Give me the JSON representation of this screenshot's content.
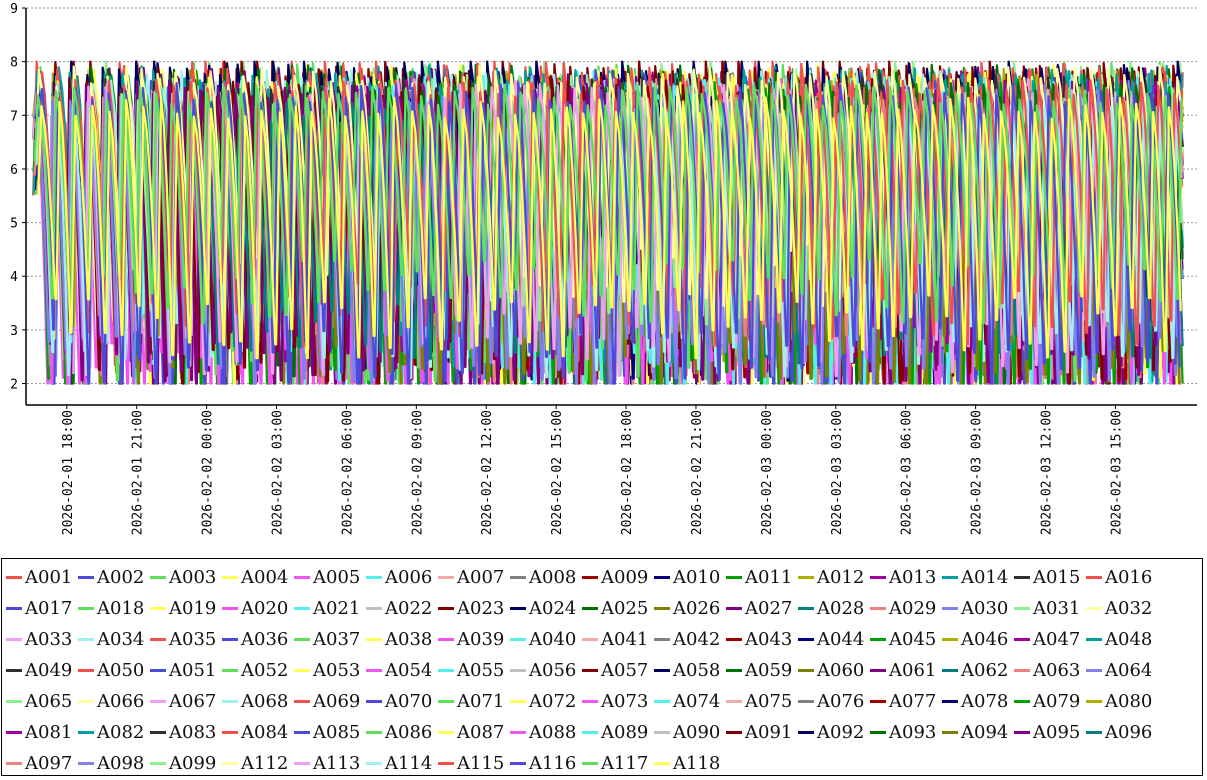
{
  "chart_data": {
    "type": "line",
    "title": "",
    "xlabel": "",
    "ylabel": "",
    "ylim": [
      1.6,
      9
    ],
    "yticks": [
      2,
      3,
      4,
      5,
      6,
      7,
      8,
      9
    ],
    "grid": "horizontal dashed",
    "legend_placement": "bottom",
    "x_tick_labels": [
      "2026-02-01  18:00",
      "2026-02-01  21:00",
      "2026-02-02  00:00",
      "2026-02-02  03:00",
      "2026-02-02  06:00",
      "2026-02-02  09:00",
      "2026-02-02  12:00",
      "2026-02-02  15:00",
      "2026-02-02  18:00",
      "2026-02-02  21:00",
      "2026-02-03  00:00",
      "2026-02-03  03:00",
      "2026-02-03  06:00",
      "2026-02-03  09:00",
      "2026-02-03  12:00",
      "2026-02-03  15:00"
    ],
    "x_range_hours": [
      16.25,
      66.5
    ],
    "x_tick_hours": [
      18,
      21,
      24,
      27,
      30,
      33,
      36,
      39,
      42,
      45,
      48,
      51,
      54,
      57,
      60,
      63
    ],
    "series_pattern": {
      "cycle_hours": 0.85,
      "low_range": [
        2.0,
        4.3
      ],
      "high_range": [
        6.9,
        7.9
      ]
    },
    "series": [
      {
        "name": "A001",
        "color": "#f05050"
      },
      {
        "name": "A002",
        "color": "#4b4bd8"
      },
      {
        "name": "A003",
        "color": "#5de05d"
      },
      {
        "name": "A004",
        "color": "#ffff55"
      },
      {
        "name": "A005",
        "color": "#ef55ef"
      },
      {
        "name": "A006",
        "color": "#55efef"
      },
      {
        "name": "A007",
        "color": "#f5aaaa"
      },
      {
        "name": "A008",
        "color": "#808080"
      },
      {
        "name": "A009",
        "color": "#a00000"
      },
      {
        "name": "A010",
        "color": "#000080"
      },
      {
        "name": "A011",
        "color": "#00a000"
      },
      {
        "name": "A012",
        "color": "#b0b000"
      },
      {
        "name": "A013",
        "color": "#a000a0"
      },
      {
        "name": "A014",
        "color": "#00a0a0"
      },
      {
        "name": "A015",
        "color": "#303030"
      },
      {
        "name": "A016",
        "color": "#f05050"
      },
      {
        "name": "A017",
        "color": "#4b4bd8"
      },
      {
        "name": "A018",
        "color": "#5de05d"
      },
      {
        "name": "A019",
        "color": "#ffff55"
      },
      {
        "name": "A020",
        "color": "#ef55ef"
      },
      {
        "name": "A021",
        "color": "#55efef"
      },
      {
        "name": "A022",
        "color": "#c0c0c0"
      },
      {
        "name": "A023",
        "color": "#800000"
      },
      {
        "name": "A024",
        "color": "#000060"
      },
      {
        "name": "A025",
        "color": "#007000"
      },
      {
        "name": "A026",
        "color": "#808000"
      },
      {
        "name": "A027",
        "color": "#800080"
      },
      {
        "name": "A028",
        "color": "#008080"
      },
      {
        "name": "A029",
        "color": "#f08080"
      },
      {
        "name": "A030",
        "color": "#8080f0"
      },
      {
        "name": "A031",
        "color": "#90f090"
      },
      {
        "name": "A032",
        "color": "#ffffa0"
      },
      {
        "name": "A033",
        "color": "#f0a0f0"
      },
      {
        "name": "A034",
        "color": "#a0f0f0"
      },
      {
        "name": "A035",
        "color": "#f05050"
      },
      {
        "name": "A036",
        "color": "#4b4bd8"
      },
      {
        "name": "A037",
        "color": "#5de05d"
      },
      {
        "name": "A038",
        "color": "#ffff55"
      },
      {
        "name": "A039",
        "color": "#ef55ef"
      },
      {
        "name": "A040",
        "color": "#55efef"
      },
      {
        "name": "A041",
        "color": "#f5aaaa"
      },
      {
        "name": "A042",
        "color": "#808080"
      },
      {
        "name": "A043",
        "color": "#a00000"
      },
      {
        "name": "A044",
        "color": "#000080"
      },
      {
        "name": "A045",
        "color": "#00a000"
      },
      {
        "name": "A046",
        "color": "#b0b000"
      },
      {
        "name": "A047",
        "color": "#a000a0"
      },
      {
        "name": "A048",
        "color": "#00a0a0"
      },
      {
        "name": "A049",
        "color": "#303030"
      },
      {
        "name": "A050",
        "color": "#f05050"
      },
      {
        "name": "A051",
        "color": "#4b4bd8"
      },
      {
        "name": "A052",
        "color": "#5de05d"
      },
      {
        "name": "A053",
        "color": "#ffff55"
      },
      {
        "name": "A054",
        "color": "#ef55ef"
      },
      {
        "name": "A055",
        "color": "#55efef"
      },
      {
        "name": "A056",
        "color": "#c0c0c0"
      },
      {
        "name": "A057",
        "color": "#800000"
      },
      {
        "name": "A058",
        "color": "#000060"
      },
      {
        "name": "A059",
        "color": "#007000"
      },
      {
        "name": "A060",
        "color": "#808000"
      },
      {
        "name": "A061",
        "color": "#800080"
      },
      {
        "name": "A062",
        "color": "#008080"
      },
      {
        "name": "A063",
        "color": "#f08080"
      },
      {
        "name": "A064",
        "color": "#8080f0"
      },
      {
        "name": "A065",
        "color": "#90f090"
      },
      {
        "name": "A066",
        "color": "#ffffa0"
      },
      {
        "name": "A067",
        "color": "#f0a0f0"
      },
      {
        "name": "A068",
        "color": "#a0f0f0"
      },
      {
        "name": "A069",
        "color": "#f05050"
      },
      {
        "name": "A070",
        "color": "#4b4bd8"
      },
      {
        "name": "A071",
        "color": "#5de05d"
      },
      {
        "name": "A072",
        "color": "#ffff55"
      },
      {
        "name": "A073",
        "color": "#ef55ef"
      },
      {
        "name": "A074",
        "color": "#55efef"
      },
      {
        "name": "A075",
        "color": "#f5aaaa"
      },
      {
        "name": "A076",
        "color": "#808080"
      },
      {
        "name": "A077",
        "color": "#a00000"
      },
      {
        "name": "A078",
        "color": "#000080"
      },
      {
        "name": "A079",
        "color": "#00a000"
      },
      {
        "name": "A080",
        "color": "#b0b000"
      },
      {
        "name": "A081",
        "color": "#a000a0"
      },
      {
        "name": "A082",
        "color": "#00a0a0"
      },
      {
        "name": "A083",
        "color": "#303030"
      },
      {
        "name": "A084",
        "color": "#f05050"
      },
      {
        "name": "A085",
        "color": "#4b4bd8"
      },
      {
        "name": "A086",
        "color": "#5de05d"
      },
      {
        "name": "A087",
        "color": "#ffff55"
      },
      {
        "name": "A088",
        "color": "#ef55ef"
      },
      {
        "name": "A089",
        "color": "#55efef"
      },
      {
        "name": "A090",
        "color": "#c0c0c0"
      },
      {
        "name": "A091",
        "color": "#800000"
      },
      {
        "name": "A092",
        "color": "#000060"
      },
      {
        "name": "A093",
        "color": "#007000"
      },
      {
        "name": "A094",
        "color": "#808000"
      },
      {
        "name": "A095",
        "color": "#800080"
      },
      {
        "name": "A096",
        "color": "#008080"
      },
      {
        "name": "A097",
        "color": "#f08080"
      },
      {
        "name": "A098",
        "color": "#8080f0"
      },
      {
        "name": "A099",
        "color": "#90f090"
      },
      {
        "name": "A112",
        "color": "#ffffa0"
      },
      {
        "name": "A113",
        "color": "#f0a0f0"
      },
      {
        "name": "A114",
        "color": "#a0f0f0"
      },
      {
        "name": "A115",
        "color": "#f05050"
      },
      {
        "name": "A116",
        "color": "#4b4bd8"
      },
      {
        "name": "A117",
        "color": "#5de05d"
      },
      {
        "name": "A118",
        "color": "#ffff55"
      }
    ]
  }
}
